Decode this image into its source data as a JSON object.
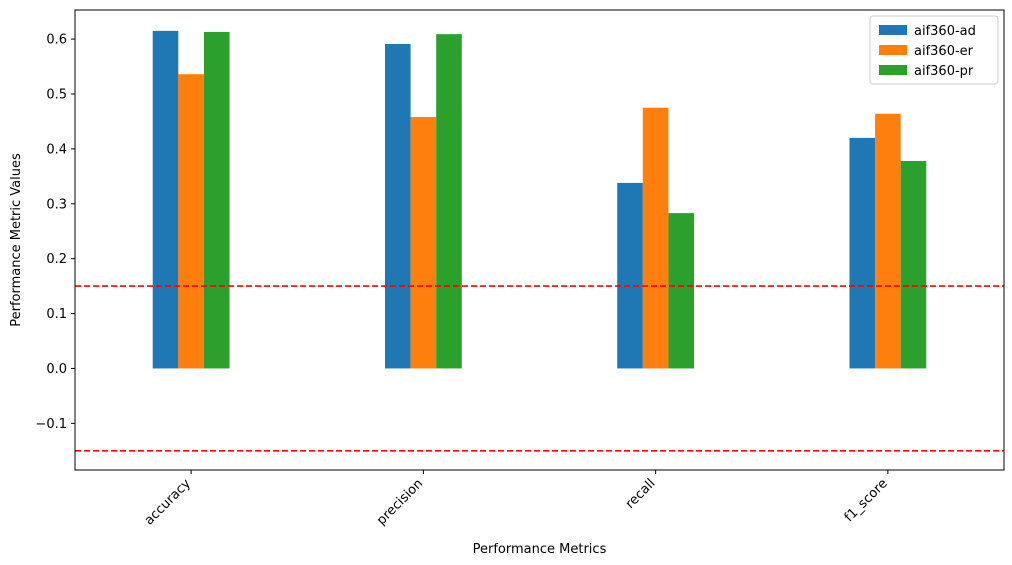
{
  "chart_data": {
    "type": "bar",
    "title": "",
    "xlabel": "Performance Metrics",
    "ylabel": "Performance Metric Values",
    "categories": [
      "accuracy",
      "precision",
      "recall",
      "f1_score"
    ],
    "series": [
      {
        "name": "aif360-ad",
        "color": "#1f77b4",
        "values": [
          0.615,
          0.591,
          0.338,
          0.42
        ]
      },
      {
        "name": "aif360-er",
        "color": "#ff7f0e",
        "values": [
          0.536,
          0.458,
          0.475,
          0.464
        ]
      },
      {
        "name": "aif360-pr",
        "color": "#2ca02c",
        "values": [
          0.613,
          0.609,
          0.283,
          0.378
        ]
      }
    ],
    "ylim": [
      -0.185,
      0.653
    ],
    "yticks": [
      -0.1,
      0.0,
      0.1,
      0.2,
      0.3,
      0.4,
      0.5,
      0.6
    ],
    "ytick_labels": [
      "−0.1",
      "0.0",
      "0.1",
      "0.2",
      "0.3",
      "0.4",
      "0.5",
      "0.6"
    ],
    "reference_lines": [
      {
        "y": 0.15,
        "color": "#ff0000",
        "style": "dashed"
      },
      {
        "y": -0.15,
        "color": "#ff0000",
        "style": "dashed"
      }
    ],
    "legend_position": "top-right",
    "grid": false
  }
}
